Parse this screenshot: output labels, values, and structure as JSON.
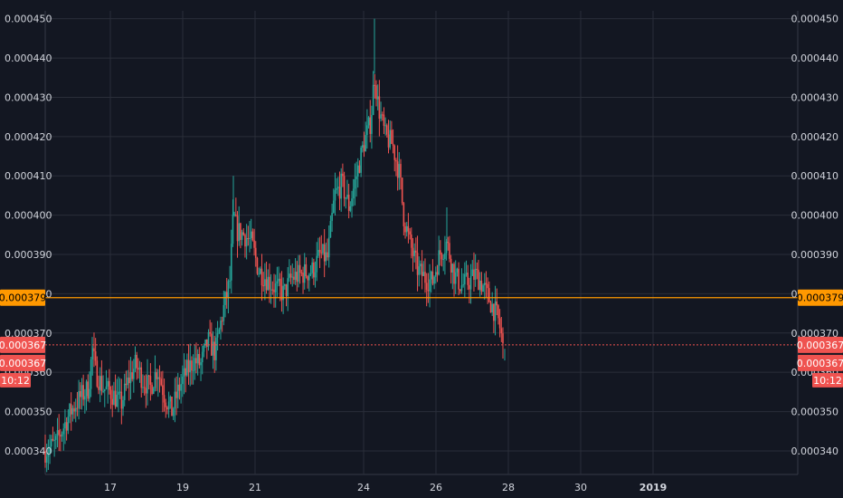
{
  "colors": {
    "background": "#131722",
    "grid": "#2a2e39",
    "up": "#26a69a",
    "down": "#ef5350",
    "axis_text": "#d1d4dc",
    "hline": "#ff9800",
    "last_price": "#ef5350"
  },
  "chart_data": {
    "type": "candlestick",
    "title": "",
    "xlabel": "",
    "ylabel": "",
    "ylim": [
      0.000334,
      0.000452
    ],
    "y_ticks": [
      "0.000340",
      "0.000350",
      "0.000360",
      "0.000370",
      "0.000380",
      "0.000390",
      "0.000400",
      "0.000410",
      "0.000420",
      "0.000430",
      "0.000440",
      "0.000450"
    ],
    "x_ticks": [
      "17",
      "19",
      "21",
      "24",
      "26",
      "28",
      "30",
      "2019"
    ],
    "x_tick_days": [
      17,
      19,
      21,
      24,
      26,
      28,
      30,
      32
    ],
    "xlim_days": [
      15.2,
      36
    ],
    "horizontal_line": {
      "value": 0.000379,
      "label": "0.000379",
      "color": "#ff9800"
    },
    "last_price": {
      "value": 0.000367,
      "label": "0.000367",
      "countdown": "10:12"
    },
    "price_path": [
      [
        15.2,
        0.00034
      ],
      [
        15.5,
        0.000342
      ],
      [
        15.7,
        0.000346
      ],
      [
        15.9,
        0.00035
      ],
      [
        16.2,
        0.000354
      ],
      [
        16.4,
        0.000356
      ],
      [
        16.5,
        0.000366
      ],
      [
        16.6,
        0.00036
      ],
      [
        16.8,
        0.000356
      ],
      [
        17.0,
        0.000355
      ],
      [
        17.3,
        0.000352
      ],
      [
        17.5,
        0.000358
      ],
      [
        17.7,
        0.000362
      ],
      [
        17.9,
        0.000358
      ],
      [
        18.1,
        0.000356
      ],
      [
        18.3,
        0.000361
      ],
      [
        18.5,
        0.000354
      ],
      [
        18.7,
        0.00035
      ],
      [
        18.9,
        0.000356
      ],
      [
        19.1,
        0.00036
      ],
      [
        19.3,
        0.000363
      ],
      [
        19.5,
        0.000362
      ],
      [
        19.7,
        0.000368
      ],
      [
        19.9,
        0.000365
      ],
      [
        20.1,
        0.000375
      ],
      [
        20.3,
        0.000383
      ],
      [
        20.4,
        0.0004
      ],
      [
        20.5,
        0.000396
      ],
      [
        20.7,
        0.000395
      ],
      [
        20.9,
        0.000393
      ],
      [
        21.1,
        0.000386
      ],
      [
        21.3,
        0.000384
      ],
      [
        21.5,
        0.000382
      ],
      [
        21.8,
        0.00038
      ],
      [
        22.0,
        0.000384
      ],
      [
        22.3,
        0.000385
      ],
      [
        22.6,
        0.000386
      ],
      [
        22.8,
        0.00039
      ],
      [
        23.0,
        0.000389
      ],
      [
        23.2,
        0.000405
      ],
      [
        23.4,
        0.000408
      ],
      [
        23.6,
        0.000402
      ],
      [
        23.8,
        0.00041
      ],
      [
        24.0,
        0.000418
      ],
      [
        24.2,
        0.000424
      ],
      [
        24.3,
        0.000436
      ],
      [
        24.4,
        0.000428
      ],
      [
        24.6,
        0.00042
      ],
      [
        24.8,
        0.000418
      ],
      [
        25.0,
        0.00041
      ],
      [
        25.1,
        0.0004
      ],
      [
        25.3,
        0.000392
      ],
      [
        25.5,
        0.000386
      ],
      [
        25.7,
        0.000384
      ],
      [
        25.9,
        0.000383
      ],
      [
        26.1,
        0.00039
      ],
      [
        26.3,
        0.000393
      ],
      [
        26.5,
        0.000385
      ],
      [
        26.7,
        0.000382
      ],
      [
        26.9,
        0.000383
      ],
      [
        27.1,
        0.000385
      ],
      [
        27.3,
        0.000382
      ],
      [
        27.5,
        0.000378
      ],
      [
        27.6,
        0.000376
      ],
      [
        27.7,
        0.000374
      ],
      [
        27.8,
        0.00037
      ],
      [
        27.85,
        0.000366
      ]
    ]
  }
}
